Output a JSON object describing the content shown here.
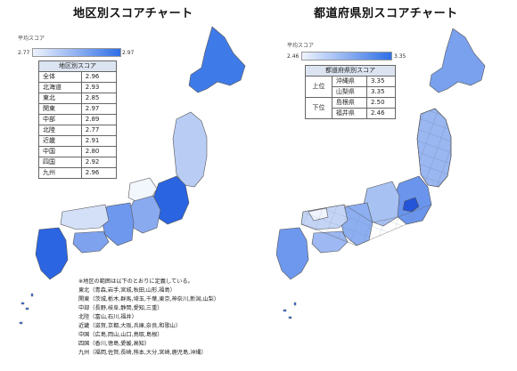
{
  "left_panel": {
    "title": "地区別スコアチャート",
    "legend": {
      "label": "平均スコア",
      "min": "2.77",
      "max": "2.97"
    },
    "table": {
      "header": "地区別スコア",
      "rows": [
        {
          "region": "全体",
          "score": "2.96"
        },
        {
          "region": "北海道",
          "score": "2.93"
        },
        {
          "region": "東北",
          "score": "2.85"
        },
        {
          "region": "関東",
          "score": "2.97"
        },
        {
          "region": "中部",
          "score": "2.89"
        },
        {
          "region": "北陸",
          "score": "2.77"
        },
        {
          "region": "近畿",
          "score": "2.91"
        },
        {
          "region": "中国",
          "score": "2.80"
        },
        {
          "region": "四国",
          "score": "2.92"
        },
        {
          "region": "九州",
          "score": "2.96"
        }
      ]
    },
    "notes": [
      "※地区の範囲は以下のとおりに定義している。",
      "東北（青森,岩手,宮城,秋田,山形,福島）",
      "関東（茨城,栃木,群馬,埼玉,千葉,東京,神奈川,新潟,山梨）",
      "中部（長野,岐阜,静岡,愛知,三重）",
      "北陸（富山,石川,福井）",
      "近畿（滋賀,京都,大阪,兵庫,奈良,和歌山）",
      "中国（広島,岡山,山口,鳥取,島根）",
      "四国（香川,徳島,愛媛,高知）",
      "九州（福岡,佐賀,長崎,熊本,大分,宮崎,鹿児島,沖縄）"
    ]
  },
  "right_panel": {
    "title": "都道府県別スコアチャート",
    "legend": {
      "label": "平均スコア",
      "min": "2.46",
      "max": "3.35"
    },
    "table": {
      "header": "都道府県別スコア",
      "groups": [
        {
          "rank": "上位",
          "items": [
            {
              "pref": "沖縄県",
              "score": "3.35"
            },
            {
              "pref": "山梨県",
              "score": "3.35"
            }
          ]
        },
        {
          "rank": "下位",
          "items": [
            {
              "pref": "島根県",
              "score": "2.50"
            },
            {
              "pref": "福井県",
              "score": "2.46"
            }
          ]
        }
      ]
    }
  },
  "colors": {
    "low": "#eef3fd",
    "high": "#2f6fe6",
    "border": "#555555"
  }
}
